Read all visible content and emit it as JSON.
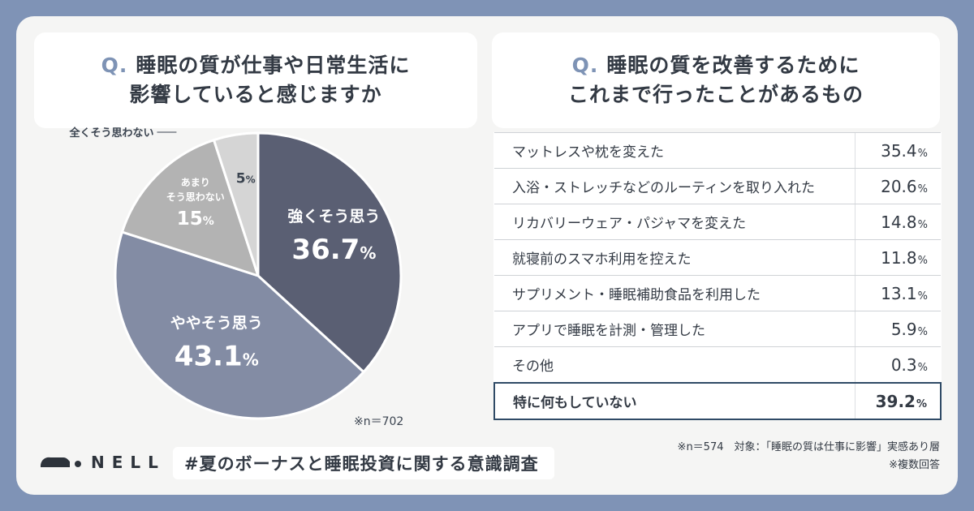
{
  "left": {
    "q_mark": "Q.",
    "question_line1": "睡眠の質が仕事や日常生活に",
    "question_line2": "影響していると感じますか",
    "n_note": "※n＝702"
  },
  "right": {
    "q_mark": "Q.",
    "question_line1": "睡眠の質を改善するために",
    "question_line2": "これまで行ったことがあるもの",
    "note_n": "※n＝574　対象：「睡眠の質は仕事に影響」実感あり層",
    "note_multi": "※複数回答"
  },
  "chart_data": [
    {
      "type": "pie",
      "slices": [
        {
          "label": "強くそう思う",
          "value": 36.7,
          "value_text": "36.7",
          "color": "#5a5f73"
        },
        {
          "label": "ややそう思う",
          "value": 43.1,
          "value_text": "43.1",
          "color": "#838ca4"
        },
        {
          "label_lines": [
            "あまり",
            "そう思わない"
          ],
          "value": 15,
          "value_text": "15",
          "color": "#b3b3b3"
        },
        {
          "label": "全くそう思わない",
          "value": 5,
          "value_text": "5",
          "color": "#d5d5d5"
        }
      ],
      "unit": "%"
    },
    {
      "type": "table",
      "columns": [
        "item",
        "percent"
      ],
      "rows": [
        {
          "label": "マットレスや枕を変えた",
          "value": 35.4,
          "value_text": "35.4"
        },
        {
          "label": "入浴・ストレッチなどのルーティンを取り入れた",
          "value": 20.6,
          "value_text": "20.6"
        },
        {
          "label": "リカバリーウェア・パジャマを変えた",
          "value": 14.8,
          "value_text": "14.8"
        },
        {
          "label": "就寝前のスマホ利用を控えた",
          "value": 11.8,
          "value_text": "11.8"
        },
        {
          "label": "サプリメント・睡眠補助食品を利用した",
          "value": 13.1,
          "value_text": "13.1"
        },
        {
          "label": "アプリで睡眠を計測・管理した",
          "value": 5.9,
          "value_text": "5.9"
        },
        {
          "label": "その他",
          "value": 0.3,
          "value_text": "0.3"
        },
        {
          "label": "特に何もしていない",
          "value": 39.2,
          "value_text": "39.2",
          "highlight": true
        }
      ],
      "unit": "%"
    }
  ],
  "footer": {
    "brand": "NELL",
    "hashtag": "#夏のボーナスと睡眠投資に関する意識調査"
  }
}
